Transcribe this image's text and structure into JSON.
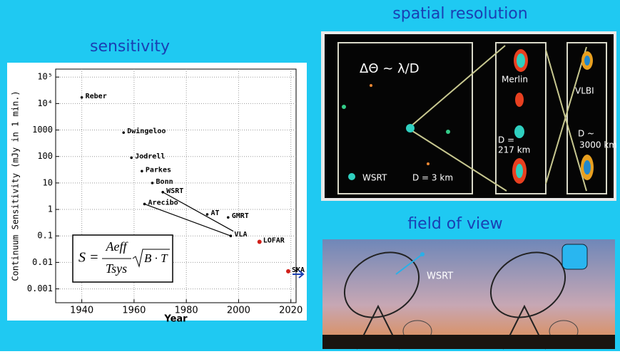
{
  "slide": {
    "sensitivity_title": "sensitivity",
    "resolution_title": "spatial resolution",
    "fov_title": "field of view"
  },
  "formula": {
    "lhs": "S =",
    "numerator": "Aeff",
    "denominator": "Tsys",
    "root": "B · T"
  },
  "resolution_panel": {
    "relation": "ΔΘ ~ λ/D",
    "wsrt": "WSRT",
    "wsrt_d": "D = 3 km",
    "merlin": "Merlin",
    "merlin_d1": "D =",
    "merlin_d2": "217 km",
    "vlbi": "VLBI",
    "vlbi_d1": "D ~",
    "vlbi_d2": "3000 km"
  },
  "fov_panel": {
    "label": "WSRT"
  },
  "chart_data": {
    "type": "scatter",
    "log_y": true,
    "xlabel": "Year",
    "ylabel": "Continuum Sensitivity (mJy in 1 min.)",
    "names": [
      "Reber",
      "Dwingeloo",
      "Jodrell",
      "Parkes",
      "Bonn",
      "WSRT",
      "Arecibo",
      "VLA",
      "AT",
      "GMRT",
      "LOFAR",
      "SKA"
    ],
    "x": [
      1940,
      1956,
      1959,
      1963,
      1967,
      1971,
      1964,
      1997,
      1988,
      1996,
      2008,
      2019
    ],
    "y": [
      17000,
      800,
      90,
      28,
      10,
      4.5,
      1.6,
      0.1,
      0.65,
      0.5,
      0.06,
      0.0046
    ],
    "colors": [
      "#000",
      "#000",
      "#000",
      "#000",
      "#000",
      "#000",
      "#000",
      "#000",
      "#000",
      "#000",
      "#d0201a",
      "#d0201a"
    ],
    "lines": [
      {
        "x": [
          1964,
          1997
        ],
        "y": [
          1.6,
          0.1
        ]
      },
      {
        "x": [
          1971,
          1998
        ],
        "y": [
          4.5,
          0.15
        ]
      }
    ],
    "xlim": [
      1930,
      2022
    ],
    "ylim": [
      0.0003,
      200000
    ],
    "xticks": [
      1940,
      1960,
      1980,
      2000,
      2020
    ],
    "yticks": [
      0.001,
      0.01,
      0.1,
      1,
      10,
      100,
      1000,
      {
        "value": 10000,
        "label": "10⁴"
      },
      {
        "value": 100000,
        "label": "10⁵"
      }
    ],
    "grid": true
  }
}
